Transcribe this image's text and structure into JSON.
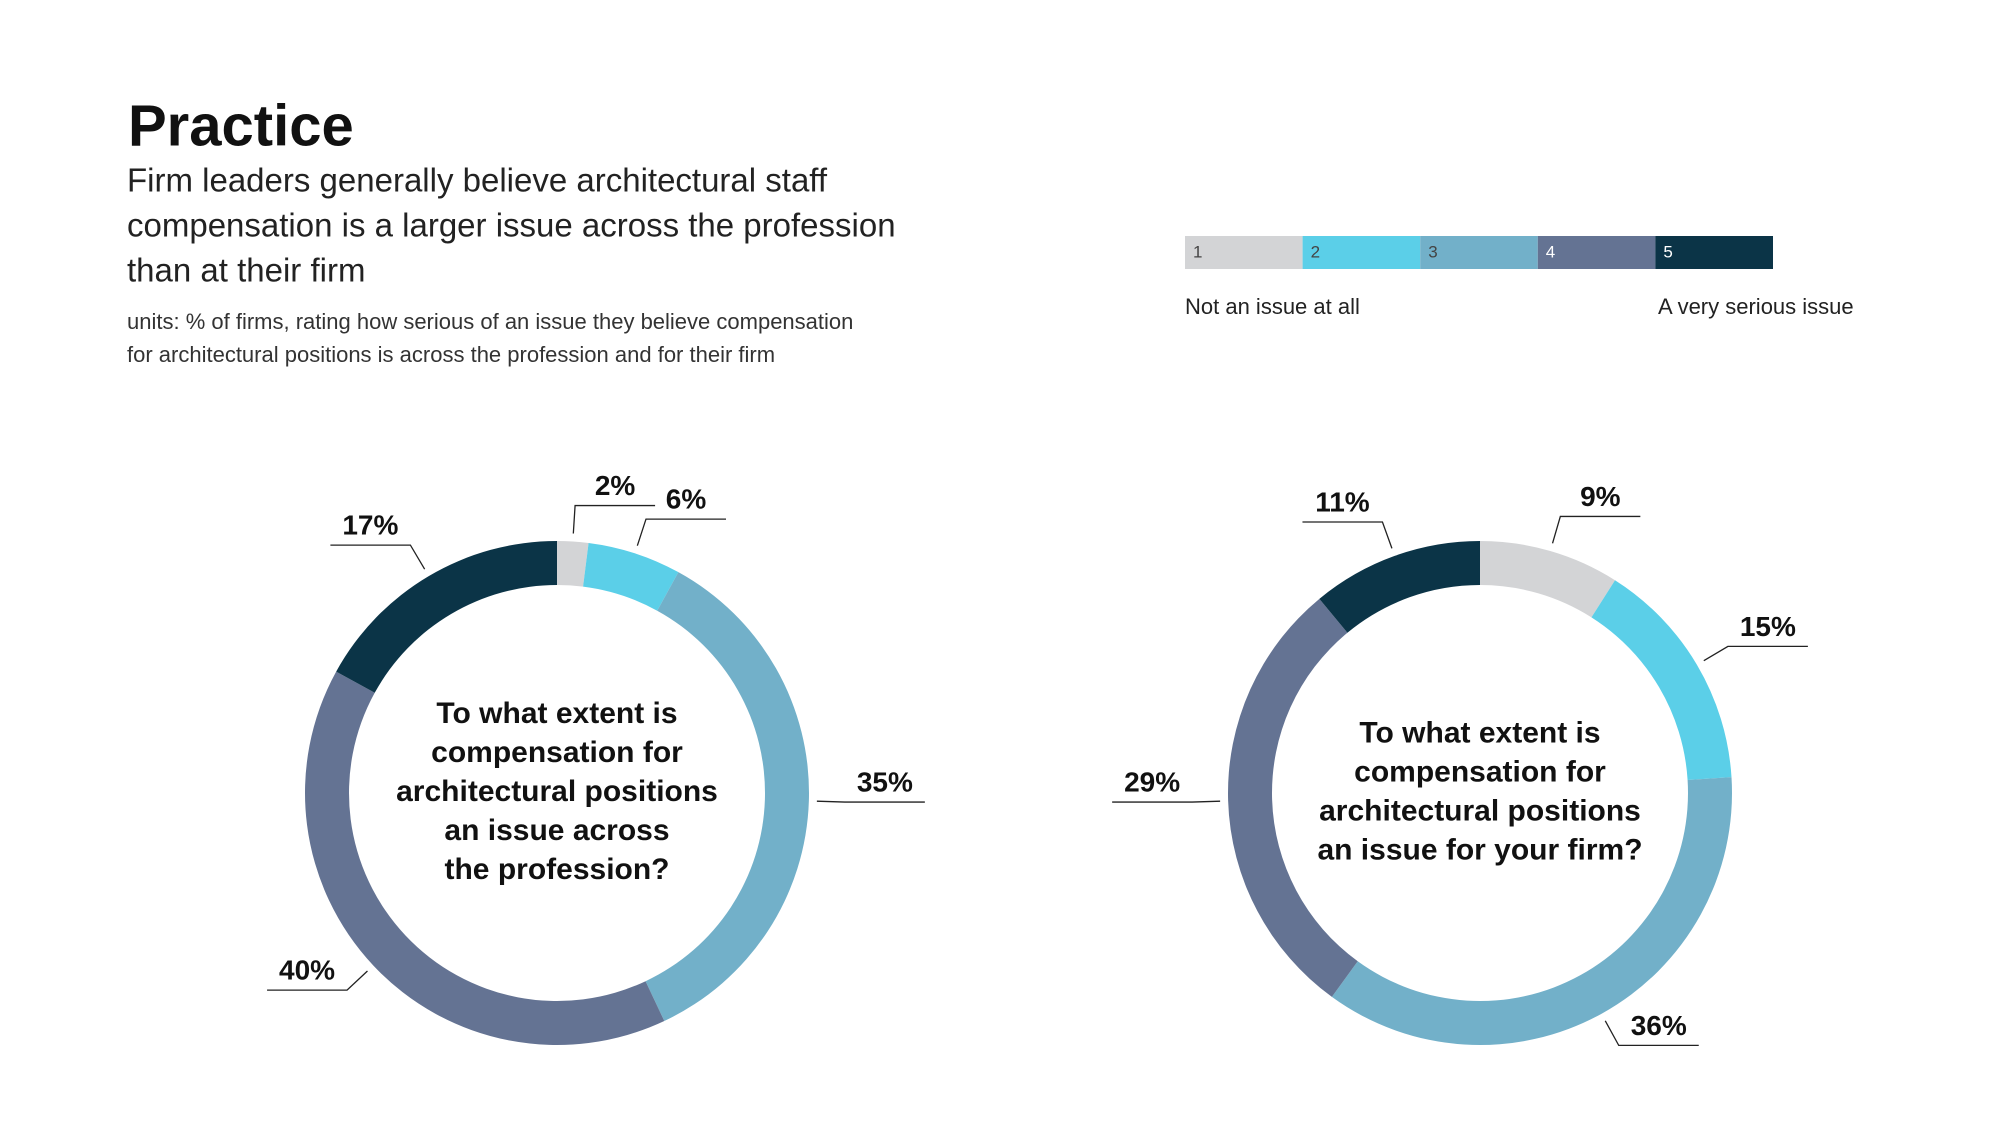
{
  "header": {
    "title": "Practice",
    "subtitle": [
      "Firm leaders generally believe architectural staff",
      "compensation is a larger issue across the profession",
      "than at their firm"
    ],
    "units_note": [
      "units: % of firms, rating how serious of an issue they believe compensation",
      "for architectural positions is across the profession and for their firm"
    ]
  },
  "legend": {
    "low_label": "Not an issue at all",
    "high_label": "A very serious issue"
  },
  "chart_data": [
    {
      "type": "donut",
      "center_text": [
        "To what extent is",
        "compensation for",
        "architectural positions",
        "an issue across",
        "the profession?"
      ],
      "categories": [
        "1",
        "2",
        "3",
        "4",
        "5"
      ],
      "values": [
        2,
        6,
        35,
        40,
        17
      ],
      "value_labels": [
        "2%",
        "6%",
        "35%",
        "40%",
        "17%"
      ],
      "colors": [
        "#d3d4d6",
        "#5bcfe8",
        "#72b0c9",
        "#647393",
        "#0b3447"
      ]
    },
    {
      "type": "donut",
      "center_text": [
        "To what extent is",
        "compensation for",
        "architectural positions",
        "an issue for your firm?"
      ],
      "categories": [
        "1",
        "2",
        "3",
        "4",
        "5"
      ],
      "values": [
        9,
        15,
        36,
        29,
        11
      ],
      "value_labels": [
        "9%",
        "15%",
        "36%",
        "29%",
        "11%"
      ],
      "colors": [
        "#d3d4d6",
        "#5bcfe8",
        "#72b0c9",
        "#647393",
        "#0b3447"
      ]
    }
  ]
}
